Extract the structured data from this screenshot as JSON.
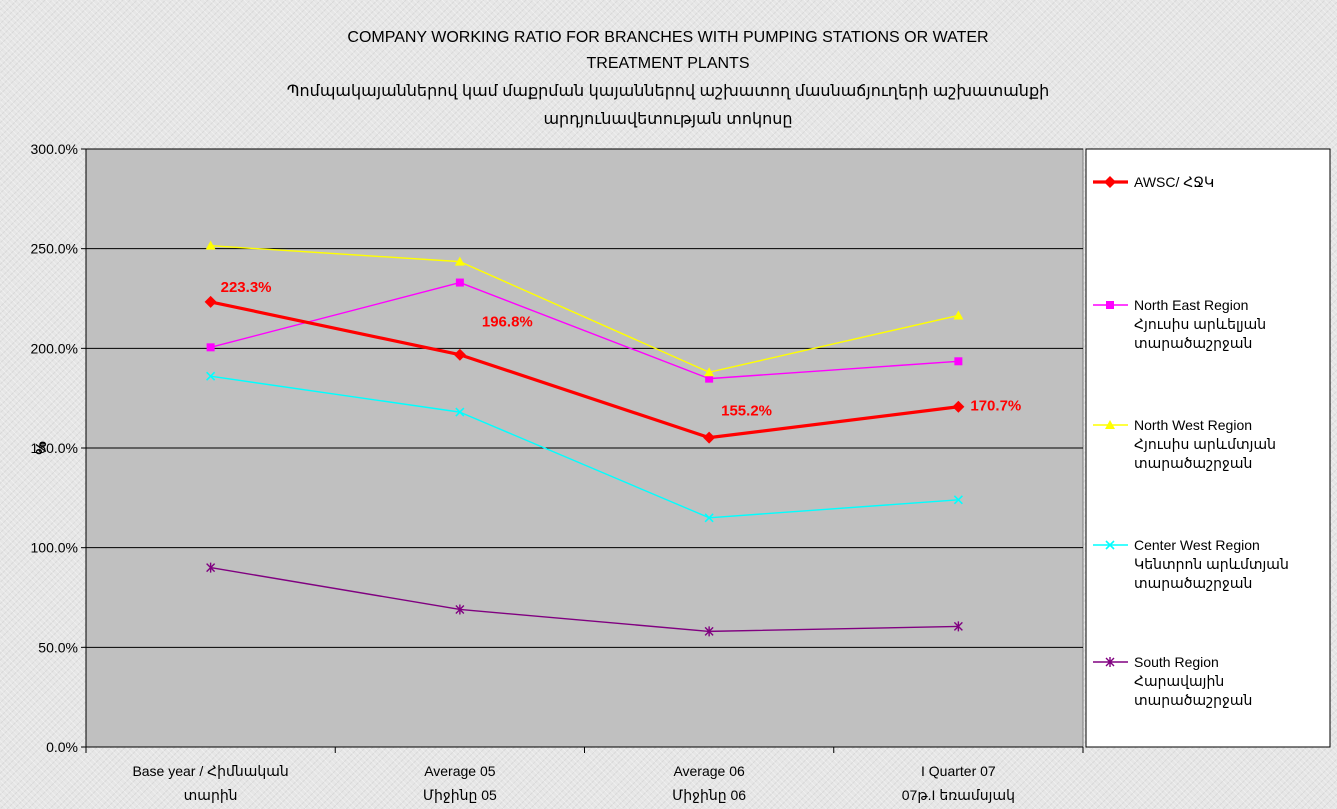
{
  "chart_data": {
    "type": "line",
    "title_lines": [
      "COMPANY WORKING RATIO FOR BRANCHES WITH PUMPING STATIONS OR WATER",
      "TREATMENT PLANTS",
      "Պոմպակայաններով կամ մաքրման կայաններով աշխատող մասնաճյուղերի աշխատանքի",
      "արդյունավետության տոկոսը"
    ],
    "ylabel": "%",
    "ylim": [
      0,
      300
    ],
    "yticks": [
      0,
      50,
      100,
      150,
      200,
      250,
      300
    ],
    "ytick_labels": [
      "0.0%",
      "50.0%",
      "100.0%",
      "150.0%",
      "200.0%",
      "250.0%",
      "300.0%"
    ],
    "categories": [
      [
        "Base year / Հիմնական",
        "տարին"
      ],
      [
        "Average 05",
        "Միջինը 05"
      ],
      [
        "Average 06",
        "Միջինը 06"
      ],
      [
        "I Quarter 07",
        "07թ.I եռամսյակ"
      ]
    ],
    "grid": true,
    "plot_background": "#c0c0c0",
    "legend_position": "right",
    "series": [
      {
        "name_lines": [
          "AWSC/ ՀՋԿ"
        ],
        "values": [
          223.3,
          196.8,
          155.2,
          170.7
        ],
        "color": "#ff0000",
        "marker": "diamond",
        "line_width": "thick",
        "data_labels": [
          "223.3%",
          "196.8%",
          "155.2%",
          "170.7%"
        ]
      },
      {
        "name_lines": [
          "North East Region",
          "Հյուսիս արևելյան",
          "տարածաշրջան"
        ],
        "values": [
          200.5,
          233.0,
          184.8,
          193.5
        ],
        "color": "#ff00ff",
        "marker": "square"
      },
      {
        "name_lines": [
          "North West Region",
          "Հյուսիս արևմտյան",
          "տարածաշրջան"
        ],
        "values": [
          251.5,
          243.5,
          188.0,
          216.5
        ],
        "color": "#ffff00",
        "marker": "triangle"
      },
      {
        "name_lines": [
          "Center West Region",
          "Կենտրոն արևմտյան",
          "տարածաշրջան"
        ],
        "values": [
          186.0,
          168.0,
          115.0,
          124.0
        ],
        "color": "#00ffff",
        "marker": "x"
      },
      {
        "name_lines": [
          "South Region",
          "Հարավային",
          "տարածաշրջան"
        ],
        "values": [
          90.0,
          69.0,
          58.0,
          60.5
        ],
        "color": "#800080",
        "marker": "asterisk"
      }
    ]
  }
}
